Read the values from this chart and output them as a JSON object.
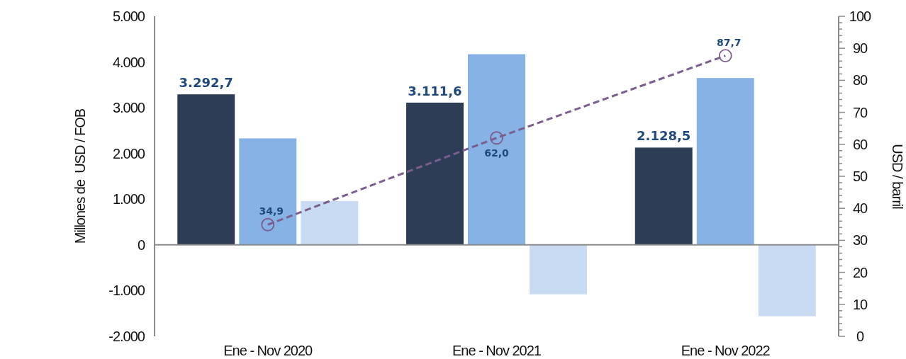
{
  "chart_data": {
    "type": "bar",
    "categories": [
      "Ene - Nov 2020",
      "Ene - Nov 2021",
      "Ene - Nov 2022"
    ],
    "ylabel": "Millones de  USD / FOB",
    "y2label": "USD / barril",
    "series": [
      {
        "color": "#2c3d55",
        "values": [
          3292.7,
          3111.6,
          2128.5
        ],
        "value_labels": [
          "3.292,7",
          "3.111,6",
          "2.128,5"
        ]
      },
      {
        "color": "#86b2e6",
        "values": [
          2330,
          4170,
          3650
        ]
      },
      {
        "color": "#c8dbf2",
        "values": [
          960,
          -1080,
          -1560
        ]
      },
      {
        "type": "line",
        "axis": "y2",
        "color": "#7a5f8e",
        "line_style": "dashed",
        "marker": "circle",
        "values": [
          34.9,
          62.0,
          87.7
        ],
        "value_labels": [
          "34,9",
          "62,0",
          "87,7"
        ]
      }
    ],
    "ylim": [
      -2000,
      5000
    ],
    "yticks": [
      {
        "value": -2000,
        "label": "-2.000"
      },
      {
        "value": -1000,
        "label": "-1.000"
      },
      0,
      {
        "value": 1000,
        "label": "1.000"
      },
      {
        "value": 2000,
        "label": "2.000"
      },
      {
        "value": 3000,
        "label": "3.000"
      },
      {
        "value": 4000,
        "label": "4.000"
      },
      {
        "value": 5000,
        "label": "5.000"
      }
    ],
    "y2lim": [
      0,
      100
    ],
    "y2ticks": [
      0,
      {
        "value": 2,
        "label": null
      },
      {
        "value": 4,
        "label": null
      },
      {
        "value": 6,
        "label": null
      },
      {
        "value": 8,
        "label": null
      },
      10,
      {
        "value": 12,
        "label": null
      },
      {
        "value": 14,
        "label": null
      },
      {
        "value": 16,
        "label": null
      },
      {
        "value": 18,
        "label": null
      },
      20,
      {
        "value": 22,
        "label": null
      },
      {
        "value": 24,
        "label": null
      },
      {
        "value": 26,
        "label": null
      },
      {
        "value": 28,
        "label": null
      },
      30,
      {
        "value": 32,
        "label": null
      },
      {
        "value": 34,
        "label": null
      },
      {
        "value": 36,
        "label": null
      },
      {
        "value": 38,
        "label": null
      },
      40,
      {
        "value": 42,
        "label": null
      },
      {
        "value": 44,
        "label": null
      },
      {
        "value": 46,
        "label": null
      },
      {
        "value": 48,
        "label": null
      },
      50,
      {
        "value": 52,
        "label": null
      },
      {
        "value": 54,
        "label": null
      },
      {
        "value": 56,
        "label": null
      },
      {
        "value": 58,
        "label": null
      },
      60,
      {
        "value": 62,
        "label": null
      },
      {
        "value": 64,
        "label": null
      },
      {
        "value": 66,
        "label": null
      },
      {
        "value": 68,
        "label": null
      },
      70,
      {
        "value": 72,
        "label": null
      },
      {
        "value": 74,
        "label": null
      },
      {
        "value": 76,
        "label": null
      },
      {
        "value": 78,
        "label": null
      },
      80,
      {
        "value": 82,
        "label": null
      },
      {
        "value": 84,
        "label": null
      },
      {
        "value": 86,
        "label": null
      },
      {
        "value": 88,
        "label": null
      },
      90,
      {
        "value": 92,
        "label": null
      },
      {
        "value": 94,
        "label": null
      },
      {
        "value": 96,
        "label": null
      },
      {
        "value": 98,
        "label": null
      },
      100
    ],
    "tick_labels": true
  }
}
